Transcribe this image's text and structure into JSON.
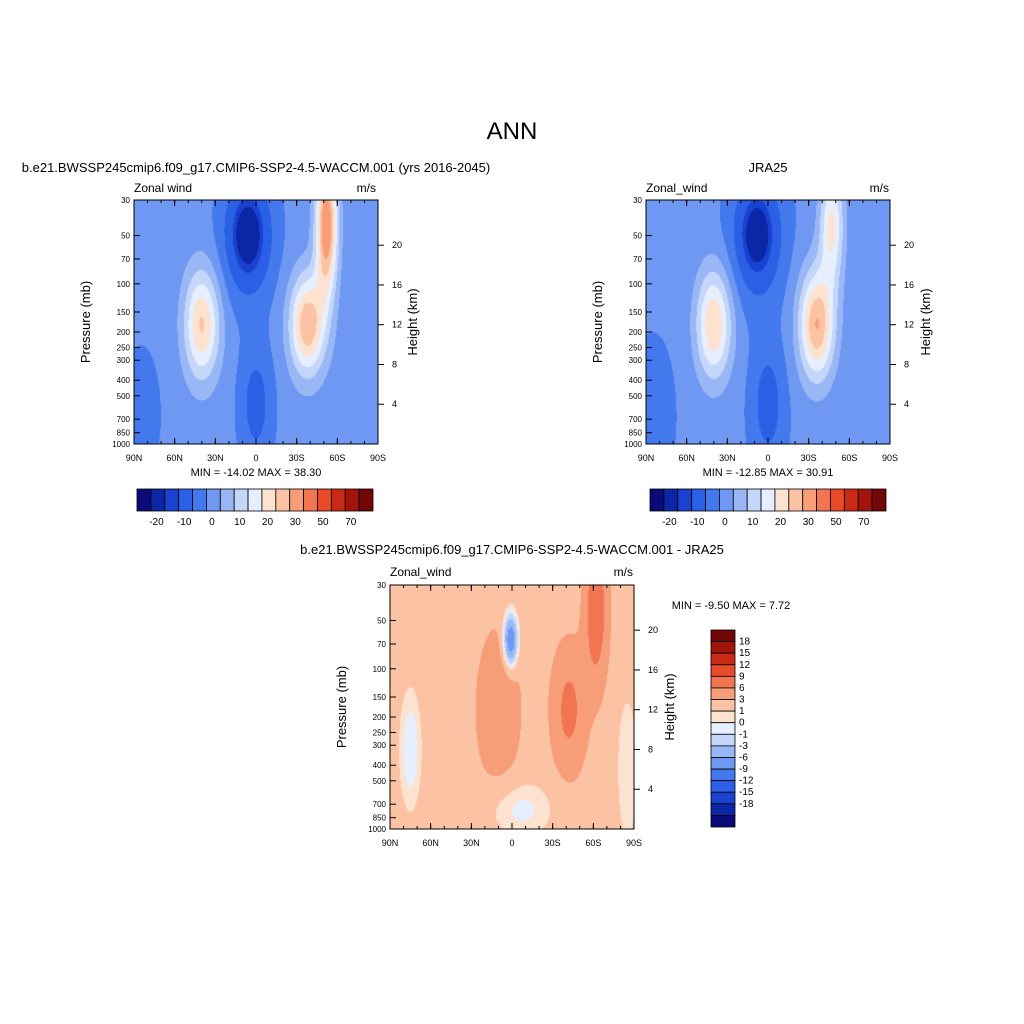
{
  "page_title": "ANN",
  "chart_data": [
    {
      "type": "contour",
      "title": "b.e21.BWSSP245cmip6.f09_g17.CMIP6-SSP2-4.5-WACCM.001 (yrs 2016-2045)",
      "left_label": "Zonal wind",
      "units": "m/s",
      "ylabel": "Pressure (mb)",
      "ylabel_right": "Height (km)",
      "x_ticks": [
        "90N",
        "60N",
        "30N",
        "0",
        "30S",
        "60S",
        "90S"
      ],
      "y_ticks": [
        "30",
        "50",
        "70",
        "100",
        "150",
        "200",
        "250",
        "300",
        "400",
        "500",
        "700",
        "850",
        "1000"
      ],
      "height_ticks": [
        "4",
        "8",
        "12",
        "16",
        "20"
      ],
      "stats": "MIN = -14.02  MAX =  38.30",
      "min": -14.02,
      "max": 38.3,
      "features": [
        {
          "lat": -50,
          "p": 50,
          "value": 38.3
        },
        {
          "lat": -38,
          "p": 200,
          "value": 35
        },
        {
          "lat": 40,
          "p": 200,
          "value": 25
        },
        {
          "lat": 8,
          "p": 50,
          "value": -14.02
        }
      ]
    },
    {
      "type": "contour",
      "title": "JRA25",
      "left_label": "Zonal_wind",
      "units": "m/s",
      "ylabel": "Pressure (mb)",
      "ylabel_right": "Height (km)",
      "x_ticks": [
        "90N",
        "60N",
        "30N",
        "0",
        "30S",
        "60S",
        "90S"
      ],
      "y_ticks": [
        "30",
        "50",
        "70",
        "100",
        "150",
        "200",
        "250",
        "300",
        "400",
        "500",
        "700",
        "850",
        "1000"
      ],
      "height_ticks": [
        "4",
        "8",
        "12",
        "16",
        "20"
      ],
      "stats": "MIN = -12.85  MAX =  30.91",
      "min": -12.85,
      "max": 30.91,
      "features": [
        {
          "lat": -45,
          "p": 40,
          "value": 30.91
        },
        {
          "lat": -35,
          "p": 200,
          "value": 30
        },
        {
          "lat": 40,
          "p": 200,
          "value": 25
        },
        {
          "lat": 10,
          "p": 40,
          "value": -12.85
        }
      ]
    },
    {
      "type": "contour",
      "title": "b.e21.BWSSP245cmip6.f09_g17.CMIP6-SSP2-4.5-WACCM.001 - JRA25",
      "left_label": "Zonal_wind",
      "units": "m/s",
      "ylabel": "Pressure (mb)",
      "ylabel_right": "Height (km)",
      "x_ticks": [
        "90N",
        "60N",
        "30N",
        "0",
        "30S",
        "60S",
        "90S"
      ],
      "y_ticks": [
        "30",
        "50",
        "70",
        "100",
        "150",
        "200",
        "250",
        "300",
        "400",
        "500",
        "700",
        "850",
        "1000"
      ],
      "height_ticks": [
        "4",
        "8",
        "12",
        "16",
        "20"
      ],
      "stats": "MIN =  -9.50  MAX =   7.72",
      "min": -9.5,
      "max": 7.72,
      "features": [
        {
          "lat": -60,
          "p": 30,
          "value": 7.72
        },
        {
          "lat": 0,
          "p": 55,
          "value": -9.5
        },
        {
          "lat": -40,
          "p": 150,
          "value": 4
        },
        {
          "lat": 75,
          "p": 300,
          "value": -2
        }
      ]
    }
  ],
  "colorbars": [
    {
      "orientation": "horizontal",
      "labels": [
        "-20",
        "-10",
        "0",
        "10",
        "20",
        "30",
        "50",
        "70"
      ],
      "colors": [
        "#0a0a78",
        "#0b26a6",
        "#1842cf",
        "#2b5fe6",
        "#4479ee",
        "#6f98f2",
        "#9ab7f5",
        "#c4d7fa",
        "#e6efff",
        "#fde2d0",
        "#fbc3a4",
        "#f79d77",
        "#f17551",
        "#e84a2a",
        "#c92a15",
        "#a3150c",
        "#730606"
      ]
    },
    {
      "orientation": "horizontal",
      "labels": [
        "-20",
        "-10",
        "0",
        "10",
        "20",
        "30",
        "50",
        "70"
      ],
      "colors": [
        "#0a0a78",
        "#0b26a6",
        "#1842cf",
        "#2b5fe6",
        "#4479ee",
        "#6f98f2",
        "#9ab7f5",
        "#c4d7fa",
        "#e6efff",
        "#fde2d0",
        "#fbc3a4",
        "#f79d77",
        "#f17551",
        "#e84a2a",
        "#c92a15",
        "#a3150c",
        "#730606"
      ]
    },
    {
      "orientation": "vertical",
      "labels": [
        "18",
        "15",
        "12",
        "9",
        "6",
        "3",
        "1",
        "0",
        "-1",
        "-3",
        "-6",
        "-9",
        "-12",
        "-15",
        "-18"
      ],
      "colors": [
        "#730606",
        "#a3150c",
        "#c92a15",
        "#e84a2a",
        "#f17551",
        "#f79d77",
        "#fbc3a4",
        "#fde2d0",
        "#e6efff",
        "#c4d7fa",
        "#9ab7f5",
        "#6f98f2",
        "#4479ee",
        "#2b5fe6",
        "#1842cf",
        "#0b26a6",
        "#0a0a78"
      ]
    }
  ]
}
